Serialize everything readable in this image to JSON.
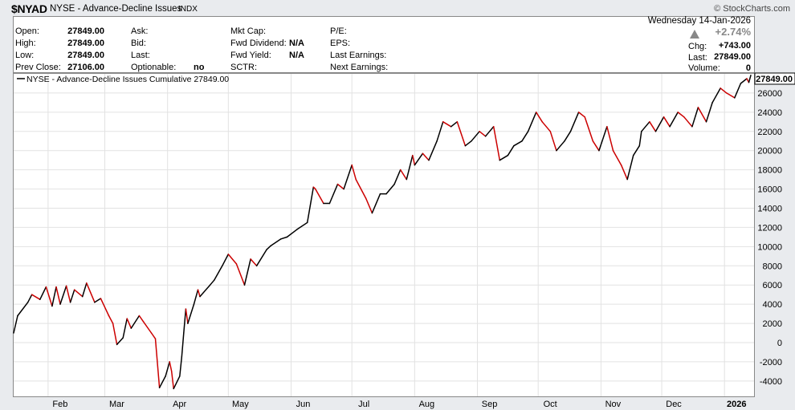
{
  "header": {
    "symbol": "$NYAD",
    "name": "NYSE - Advance-Decline Issues",
    "exchange": "INDX",
    "watermark": "© StockCharts.com"
  },
  "quote": {
    "date_line": "Wednesday  14-Jan-2026",
    "open_label": "Open:",
    "open": "27849.00",
    "high_label": "High:",
    "high": "27849.00",
    "low_label": "Low:",
    "low": "27849.00",
    "prev_close_label": "Prev Close:",
    "prev_close": "27106.00",
    "ask_label": "Ask:",
    "bid_label": "Bid:",
    "last_label": "Last:",
    "optionable_label": "Optionable:",
    "optionable": "no",
    "mktcap_label": "Mkt Cap:",
    "fwd_div_label": "Fwd Dividend:",
    "fwd_div": "N/A",
    "fwd_yield_label": "Fwd Yield:",
    "fwd_yield": "N/A",
    "sctr_label": "SCTR:",
    "pe_label": "P/E:",
    "eps_label": "EPS:",
    "last_earnings_label": "Last Earnings:",
    "next_earnings_label": "Next Earnings:",
    "pct_change": "+2.74%",
    "chg_label": "Chg:",
    "chg": "+743.00",
    "last_label_r": "Last:",
    "last": "27849.00",
    "volume_label": "Volume:",
    "volume": "0",
    "up_color": "#888888"
  },
  "chart_data": {
    "type": "line",
    "title": "NYSE - Advance-Decline Issues Cumulative 27849.00",
    "last_value_label": "27849.00",
    "line_colors": {
      "up": "#000000",
      "down": "#cc0000"
    },
    "x_labels": [
      "Feb",
      "Mar",
      "Apr",
      "May",
      "Jun",
      "Jul",
      "Aug",
      "Sep",
      "Oct",
      "Nov",
      "Dec",
      "2026"
    ],
    "y_ticks": [
      -4000,
      -2000,
      0,
      2000,
      4000,
      6000,
      8000,
      10000,
      12000,
      14000,
      16000,
      18000,
      20000,
      22000,
      24000,
      26000
    ],
    "ylim": [
      -5600,
      28000
    ],
    "grid": true,
    "x_range": [
      "2025-01-15",
      "2026-01-14"
    ],
    "series": [
      {
        "dates": [
          "2025-01-15",
          "2025-01-17",
          "2025-01-22",
          "2025-01-24",
          "2025-01-28",
          "2025-01-31",
          "2025-02-03",
          "2025-02-05",
          "2025-02-07",
          "2025-02-10",
          "2025-02-12",
          "2025-02-14",
          "2025-02-18",
          "2025-02-20",
          "2025-02-24",
          "2025-02-27",
          "2025-03-03",
          "2025-03-05",
          "2025-03-07",
          "2025-03-10",
          "2025-03-12",
          "2025-03-14",
          "2025-03-18",
          "2025-03-20",
          "2025-03-24",
          "2025-03-26",
          "2025-03-28",
          "2025-03-31",
          "2025-04-02",
          "2025-04-03",
          "2025-04-04",
          "2025-04-07",
          "2025-04-08",
          "2025-04-09",
          "2025-04-10",
          "2025-04-11",
          "2025-04-14",
          "2025-04-16",
          "2025-04-17",
          "2025-04-22",
          "2025-04-24",
          "2025-04-28",
          "2025-05-01",
          "2025-05-05",
          "2025-05-09",
          "2025-05-12",
          "2025-05-15",
          "2025-05-20",
          "2025-05-22",
          "2025-05-27",
          "2025-05-30",
          "2025-06-04",
          "2025-06-09",
          "2025-06-12",
          "2025-06-13",
          "2025-06-17",
          "2025-06-20",
          "2025-06-24",
          "2025-06-27",
          "2025-07-01",
          "2025-07-03",
          "2025-07-08",
          "2025-07-11",
          "2025-07-15",
          "2025-07-18",
          "2025-07-22",
          "2025-07-25",
          "2025-07-28",
          "2025-07-31",
          "2025-08-01",
          "2025-08-05",
          "2025-08-08",
          "2025-08-12",
          "2025-08-15",
          "2025-08-19",
          "2025-08-22",
          "2025-08-26",
          "2025-08-29",
          "2025-09-02",
          "2025-09-05",
          "2025-09-09",
          "2025-09-12",
          "2025-09-16",
          "2025-09-19",
          "2025-09-23",
          "2025-09-26",
          "2025-09-30",
          "2025-10-03",
          "2025-10-07",
          "2025-10-10",
          "2025-10-14",
          "2025-10-17",
          "2025-10-21",
          "2025-10-24",
          "2025-10-28",
          "2025-10-31",
          "2025-11-04",
          "2025-11-07",
          "2025-11-11",
          "2025-11-14",
          "2025-11-17",
          "2025-11-20",
          "2025-11-21",
          "2025-11-25",
          "2025-11-28",
          "2025-12-02",
          "2025-12-05",
          "2025-12-09",
          "2025-12-12",
          "2025-12-16",
          "2025-12-19",
          "2025-12-23",
          "2025-12-26",
          "2025-12-30",
          "2026-01-02",
          "2026-01-06",
          "2026-01-09",
          "2026-01-12",
          "2026-01-13",
          "2026-01-14"
        ],
        "values": [
          1000,
          2800,
          4200,
          5000,
          4500,
          5800,
          3800,
          5800,
          4000,
          5900,
          4200,
          5500,
          4800,
          6200,
          4200,
          4600,
          2800,
          2000,
          -200,
          500,
          2500,
          1500,
          2800,
          2200,
          1000,
          400,
          -4700,
          -3500,
          -2000,
          -3000,
          -4800,
          -3500,
          -1500,
          1000,
          3500,
          2000,
          4000,
          5500,
          4800,
          6000,
          6500,
          8000,
          9200,
          8200,
          6000,
          8700,
          8000,
          9700,
          10100,
          10800,
          11000,
          11800,
          12500,
          16200,
          16000,
          14500,
          14500,
          16500,
          16000,
          18500,
          17000,
          15000,
          13500,
          15500,
          15500,
          16500,
          18000,
          17000,
          19500,
          18500,
          19700,
          19000,
          21000,
          23000,
          22500,
          23000,
          20500,
          21000,
          22000,
          21500,
          22500,
          19000,
          19500,
          20500,
          21000,
          22000,
          24000,
          23000,
          22000,
          20000,
          21000,
          22000,
          24000,
          23500,
          21000,
          20000,
          22500,
          20000,
          18500,
          17000,
          19500,
          20500,
          22000,
          23000,
          22000,
          23500,
          22500,
          24000,
          23500,
          22500,
          24500,
          23000,
          25000,
          26500,
          26000,
          25500,
          27000,
          27500,
          27106,
          27849
        ]
      }
    ]
  }
}
